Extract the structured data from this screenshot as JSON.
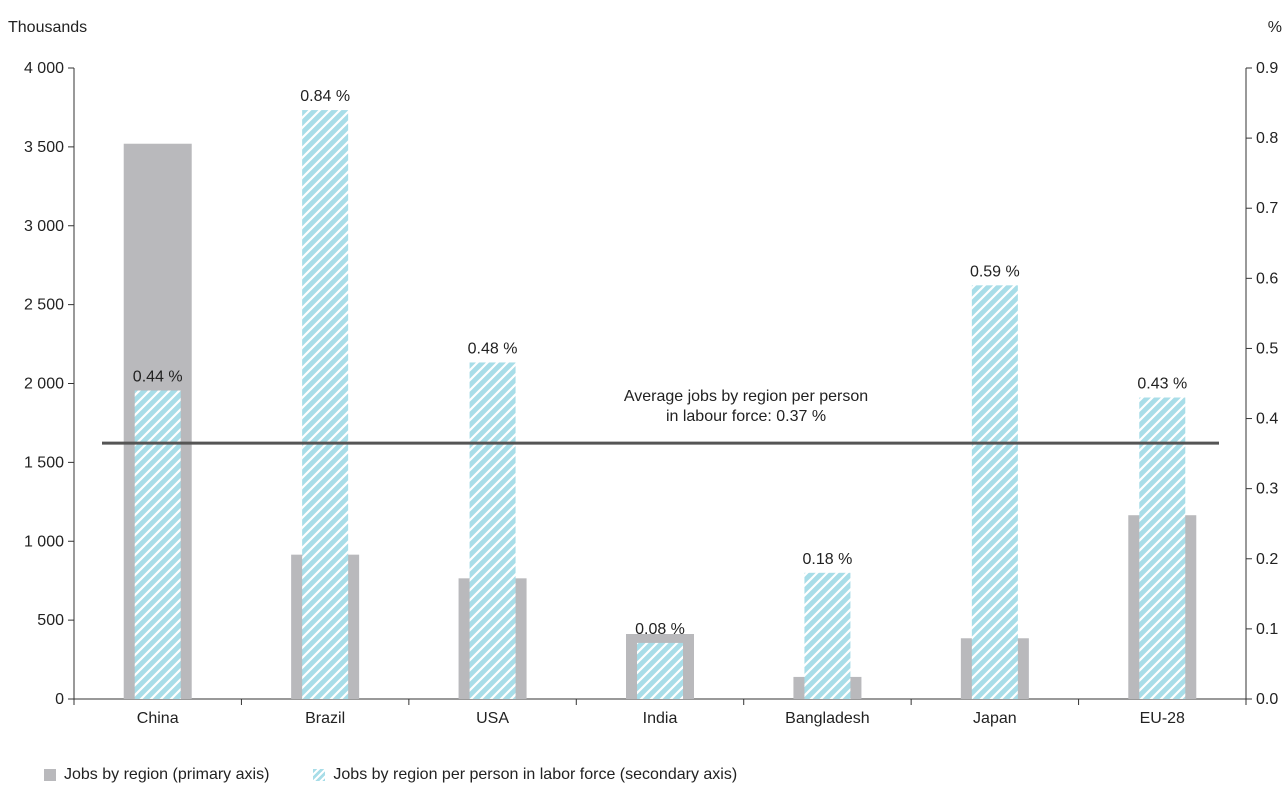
{
  "chart_data": {
    "type": "bar",
    "categories": [
      "China",
      "Brazil",
      "USA",
      "India",
      "Bangladesh",
      "Japan",
      "EU-28"
    ],
    "series": [
      {
        "name": "Jobs by region (primary axis)",
        "axis": "primary",
        "values": [
          3520,
          915,
          765,
          412,
          140,
          385,
          1165
        ],
        "color": "#b9b9bc"
      },
      {
        "name": "Jobs by region per person in labor force (secondary axis)",
        "axis": "secondary",
        "values": [
          0.44,
          0.84,
          0.48,
          0.08,
          0.18,
          0.59,
          0.43
        ],
        "data_labels": [
          "0.44 %",
          "0.84 %",
          "0.48 %",
          "0.08 %",
          "0.18 %",
          "0.59 %",
          "0.43 %"
        ],
        "color": "#a8dde8",
        "pattern": "diagonal-hatch"
      }
    ],
    "primary_axis": {
      "unit_label": "Thousands",
      "ylim": [
        0,
        4000
      ],
      "ticks": [
        0,
        500,
        1000,
        1500,
        2000,
        2500,
        3000,
        3500,
        4000
      ],
      "tick_labels": [
        "0",
        "500",
        "1 000",
        "1 500",
        "2 000",
        "2 500",
        "3 000",
        "3 500",
        "4 000"
      ]
    },
    "secondary_axis": {
      "unit_label": "%",
      "ylim": [
        0,
        0.9
      ],
      "ticks": [
        0,
        0.1,
        0.2,
        0.3,
        0.4,
        0.5,
        0.6,
        0.7,
        0.8,
        0.9
      ],
      "tick_labels": [
        "0.0",
        "0.1",
        "0.2",
        "0.3",
        "0.4",
        "0.5",
        "0.6",
        "0.7",
        "0.8",
        "0.9"
      ]
    },
    "reference_line": {
      "axis": "secondary",
      "value": 0.365,
      "label_lines": [
        "Average jobs by region per person",
        "in labour force: 0.37 %"
      ],
      "color": "#555555"
    },
    "grid": false,
    "legend_position": "bottom-left"
  },
  "legend": {
    "primary_label": "Jobs by region (primary axis)",
    "secondary_label": "Jobs by region per person in labor force (secondary axis)"
  }
}
